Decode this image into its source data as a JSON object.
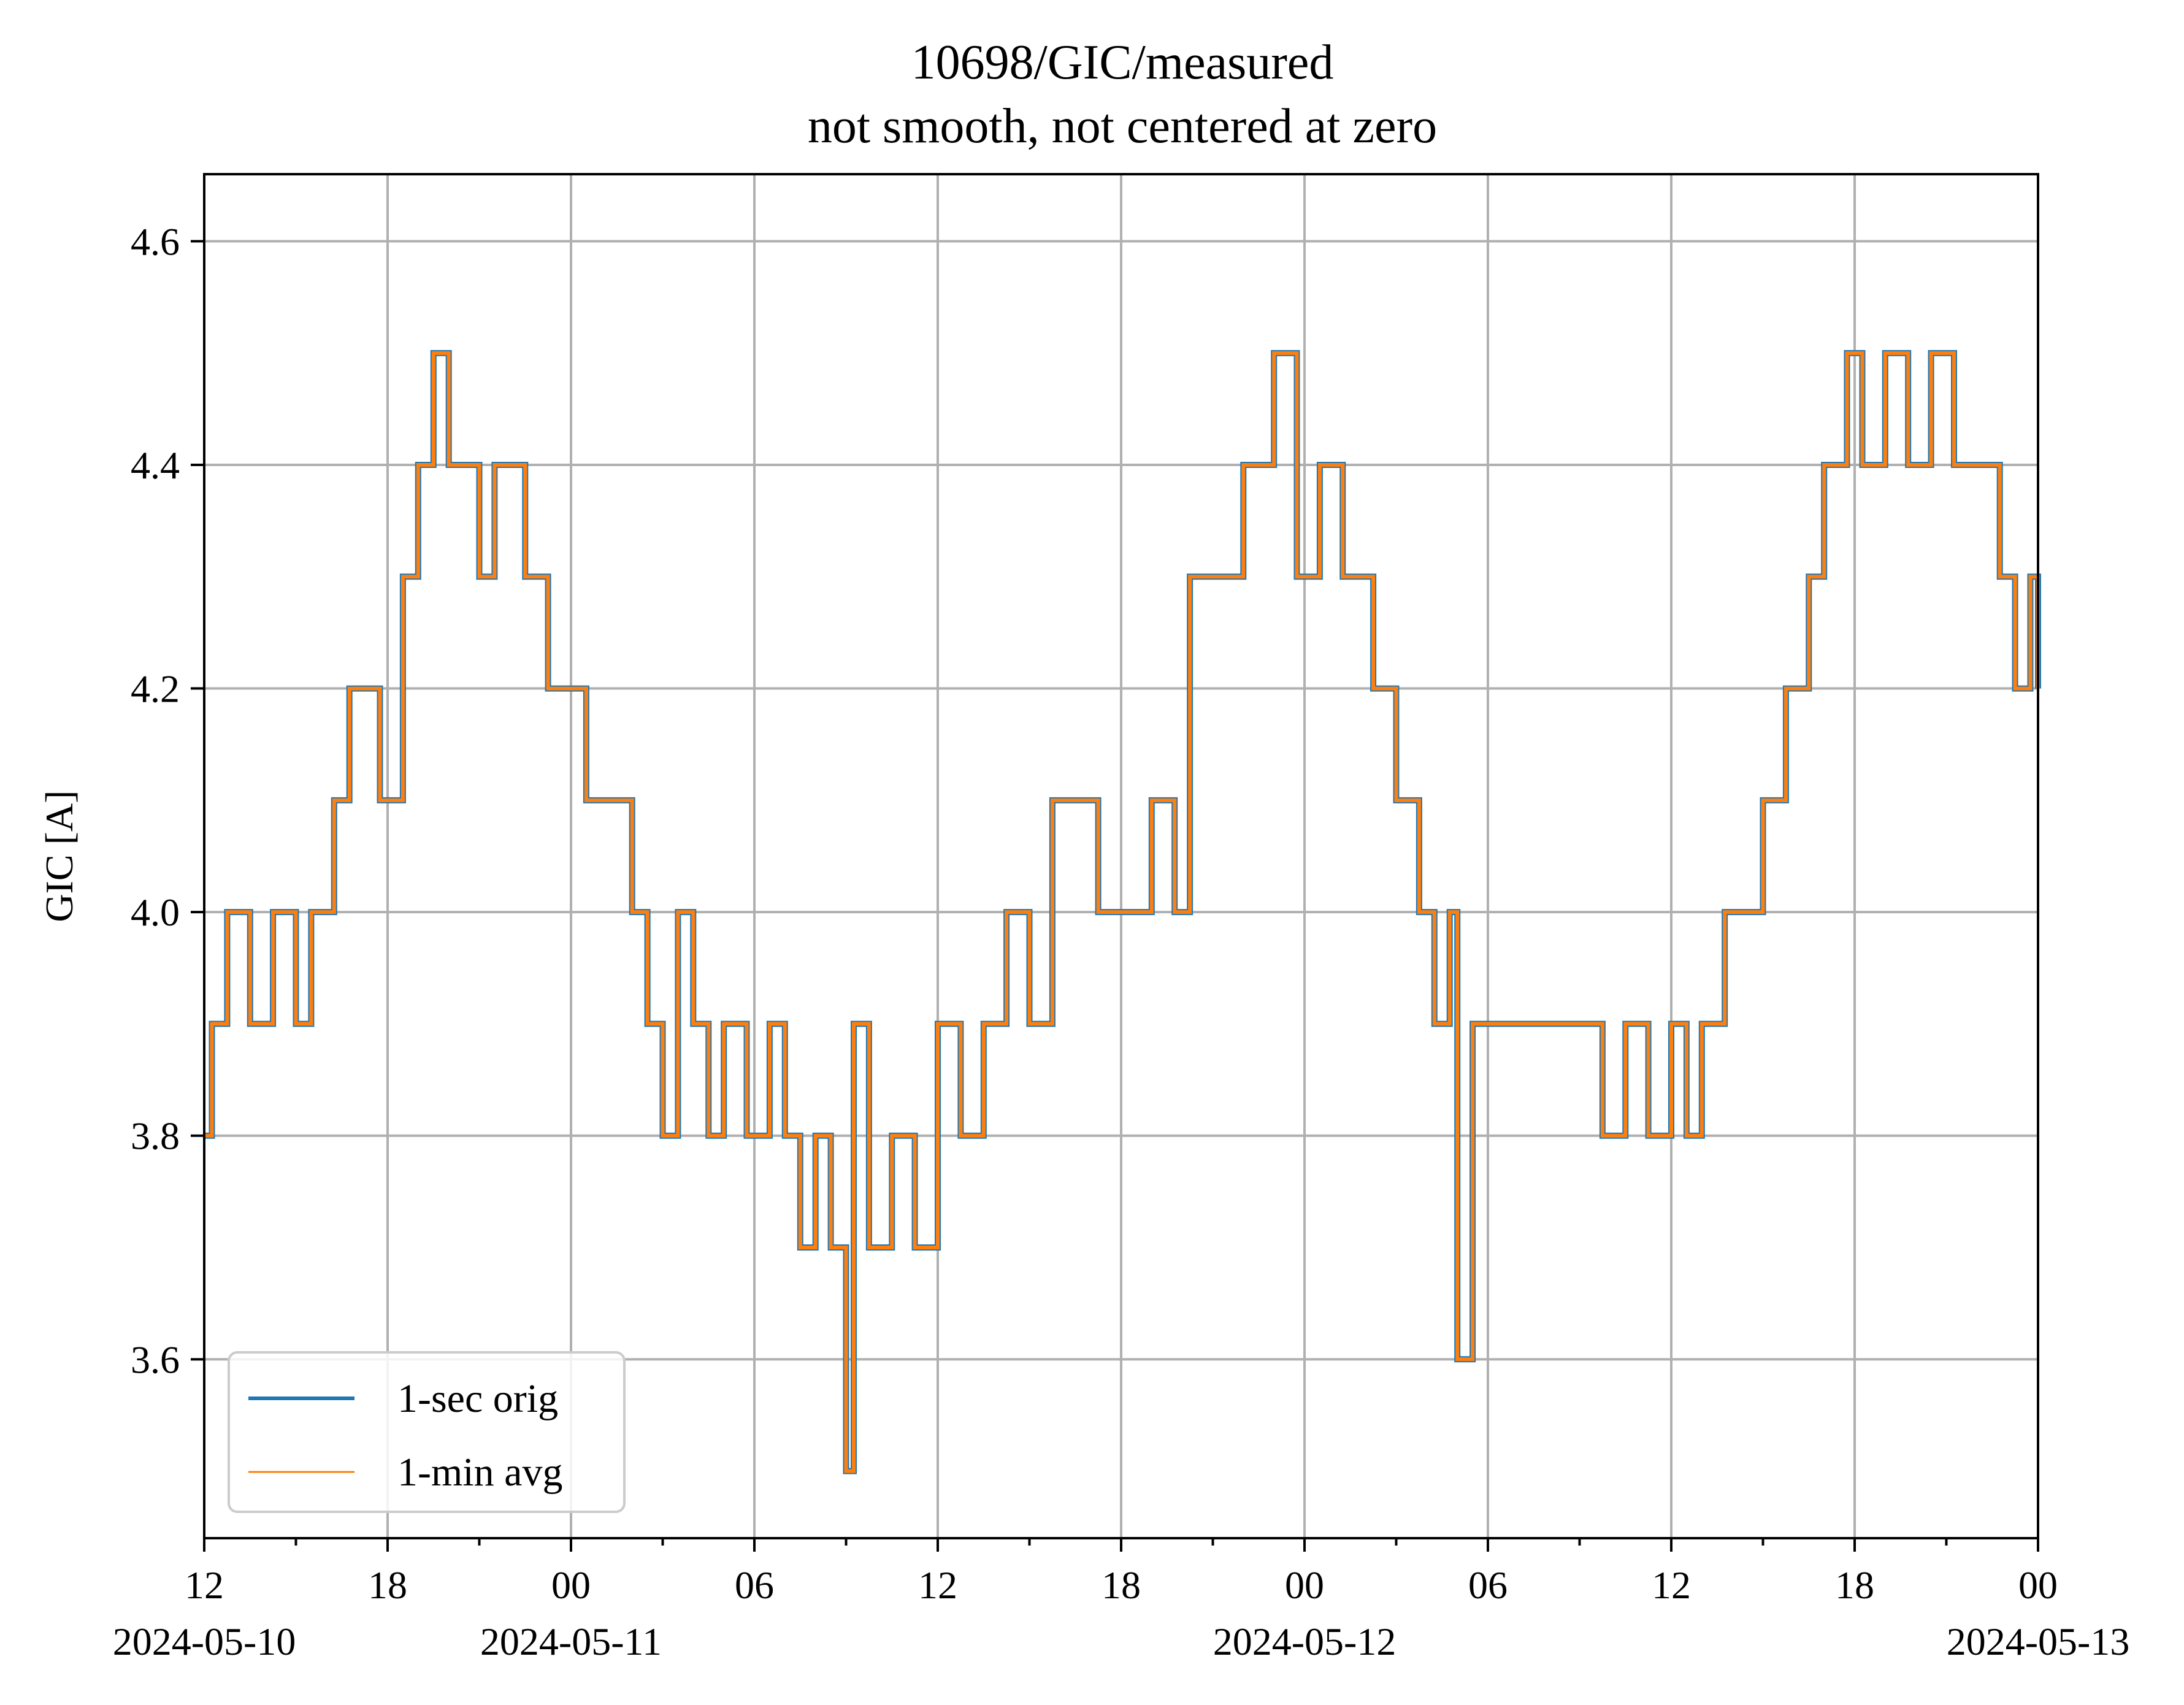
{
  "chart_data": {
    "type": "line",
    "title": "10698/GIC/measured",
    "subtitle": "not smooth, not centered at zero",
    "xlabel": "",
    "ylabel": "GIC [A]",
    "xlim": [
      "2024-05-10 12:00",
      "2024-05-13 00:00"
    ],
    "ylim": [
      3.44,
      4.66
    ],
    "grid": true,
    "legend_position": "lower-left",
    "y_ticks": [
      "3.6",
      "3.8",
      "4.0",
      "4.2",
      "4.4",
      "4.6"
    ],
    "x_ticks": [
      {
        "time": "2024-05-10 12:00",
        "label": "12",
        "date": "2024-05-10"
      },
      {
        "time": "2024-05-10 18:00",
        "label": "18",
        "date": ""
      },
      {
        "time": "2024-05-11 00:00",
        "label": "00",
        "date": "2024-05-11"
      },
      {
        "time": "2024-05-11 06:00",
        "label": "06",
        "date": ""
      },
      {
        "time": "2024-05-11 12:00",
        "label": "12",
        "date": ""
      },
      {
        "time": "2024-05-11 18:00",
        "label": "18",
        "date": ""
      },
      {
        "time": "2024-05-12 00:00",
        "label": "00",
        "date": "2024-05-12"
      },
      {
        "time": "2024-05-12 06:00",
        "label": "06",
        "date": ""
      },
      {
        "time": "2024-05-12 12:00",
        "label": "12",
        "date": ""
      },
      {
        "time": "2024-05-12 18:00",
        "label": "18",
        "date": ""
      },
      {
        "time": "2024-05-13 00:00",
        "label": "00",
        "date": "2024-05-13"
      }
    ],
    "series": [
      {
        "name": "1-sec orig",
        "color": "#1f77b4",
        "x": [
          "2024-05-10 12:00",
          "2024-05-10 12:15",
          "2024-05-10 12:45",
          "2024-05-10 13:30",
          "2024-05-10 14:15",
          "2024-05-10 15:00",
          "2024-05-10 15:30",
          "2024-05-10 16:15",
          "2024-05-10 16:45",
          "2024-05-10 17:15",
          "2024-05-10 17:45",
          "2024-05-10 18:30",
          "2024-05-10 19:00",
          "2024-05-10 19:30",
          "2024-05-10 20:00",
          "2024-05-10 21:00",
          "2024-05-10 21:30",
          "2024-05-10 22:00",
          "2024-05-10 22:30",
          "2024-05-10 23:15",
          "2024-05-10 23:45",
          "2024-05-11 00:30",
          "2024-05-11 01:15",
          "2024-05-11 02:00",
          "2024-05-11 02:30",
          "2024-05-11 03:00",
          "2024-05-11 03:30",
          "2024-05-11 04:00",
          "2024-05-11 04:30",
          "2024-05-11 05:00",
          "2024-05-11 05:45",
          "2024-05-11 06:30",
          "2024-05-11 07:00",
          "2024-05-11 07:30",
          "2024-05-11 08:00",
          "2024-05-11 08:30",
          "2024-05-11 09:00",
          "2024-05-11 09:15",
          "2024-05-11 09:45",
          "2024-05-11 10:30",
          "2024-05-11 11:15",
          "2024-05-11 12:00",
          "2024-05-11 12:45",
          "2024-05-11 13:30",
          "2024-05-11 14:15",
          "2024-05-11 15:00",
          "2024-05-11 15:45",
          "2024-05-11 16:30",
          "2024-05-11 17:15",
          "2024-05-11 18:00",
          "2024-05-11 19:00",
          "2024-05-11 19:45",
          "2024-05-11 20:15",
          "2024-05-11 21:00",
          "2024-05-11 22:00",
          "2024-05-11 23:00",
          "2024-05-11 23:45",
          "2024-05-12 00:30",
          "2024-05-12 01:15",
          "2024-05-12 02:15",
          "2024-05-12 03:00",
          "2024-05-12 03:45",
          "2024-05-12 04:15",
          "2024-05-12 04:45",
          "2024-05-12 05:00",
          "2024-05-12 05:30",
          "2024-05-12 06:00",
          "2024-05-12 07:00",
          "2024-05-12 08:00",
          "2024-05-12 09:00",
          "2024-05-12 09:45",
          "2024-05-12 10:30",
          "2024-05-12 11:15",
          "2024-05-12 12:00",
          "2024-05-12 12:30",
          "2024-05-12 13:00",
          "2024-05-12 13:45",
          "2024-05-12 14:30",
          "2024-05-12 15:00",
          "2024-05-12 15:45",
          "2024-05-12 16:30",
          "2024-05-12 17:00",
          "2024-05-12 17:45",
          "2024-05-12 18:15",
          "2024-05-12 19:00",
          "2024-05-12 19:45",
          "2024-05-12 20:30",
          "2024-05-12 21:15",
          "2024-05-12 22:00",
          "2024-05-12 22:45",
          "2024-05-12 23:15",
          "2024-05-12 23:45",
          "2024-05-13 00:00"
        ],
        "y": [
          3.8,
          3.9,
          4.0,
          3.9,
          4.0,
          3.9,
          4.0,
          4.1,
          4.2,
          4.2,
          4.1,
          4.3,
          4.4,
          4.5,
          4.4,
          4.3,
          4.4,
          4.4,
          4.3,
          4.2,
          4.2,
          4.1,
          4.1,
          4.0,
          3.9,
          3.8,
          4.0,
          3.9,
          3.8,
          3.9,
          3.8,
          3.9,
          3.8,
          3.7,
          3.8,
          3.7,
          3.5,
          3.9,
          3.7,
          3.8,
          3.7,
          3.9,
          3.8,
          3.9,
          4.0,
          3.9,
          4.1,
          4.1,
          4.0,
          4.0,
          4.1,
          4.0,
          4.3,
          4.3,
          4.4,
          4.5,
          4.3,
          4.4,
          4.3,
          4.2,
          4.1,
          4.0,
          3.9,
          4.0,
          3.6,
          3.9,
          3.9,
          3.9,
          3.9,
          3.9,
          3.8,
          3.9,
          3.8,
          3.9,
          3.8,
          3.9,
          4.0,
          4.0,
          4.1,
          4.2,
          4.3,
          4.4,
          4.5,
          4.4,
          4.5,
          4.4,
          4.5,
          4.4,
          4.4,
          4.3,
          4.2,
          4.3,
          4.2
        ]
      },
      {
        "name": "1-min avg",
        "color": "#ff7f0e",
        "x": [
          "2024-05-10 12:00",
          "2024-05-10 12:15",
          "2024-05-10 12:45",
          "2024-05-10 13:30",
          "2024-05-10 14:15",
          "2024-05-10 15:00",
          "2024-05-10 15:30",
          "2024-05-10 16:15",
          "2024-05-10 16:45",
          "2024-05-10 17:15",
          "2024-05-10 17:45",
          "2024-05-10 18:30",
          "2024-05-10 19:00",
          "2024-05-10 19:30",
          "2024-05-10 20:00",
          "2024-05-10 21:00",
          "2024-05-10 21:30",
          "2024-05-10 22:00",
          "2024-05-10 22:30",
          "2024-05-10 23:15",
          "2024-05-10 23:45",
          "2024-05-11 00:30",
          "2024-05-11 01:15",
          "2024-05-11 02:00",
          "2024-05-11 02:30",
          "2024-05-11 03:00",
          "2024-05-11 03:30",
          "2024-05-11 04:00",
          "2024-05-11 04:30",
          "2024-05-11 05:00",
          "2024-05-11 05:45",
          "2024-05-11 06:30",
          "2024-05-11 07:00",
          "2024-05-11 07:30",
          "2024-05-11 08:00",
          "2024-05-11 08:30",
          "2024-05-11 09:00",
          "2024-05-11 09:15",
          "2024-05-11 09:45",
          "2024-05-11 10:30",
          "2024-05-11 11:15",
          "2024-05-11 12:00",
          "2024-05-11 12:45",
          "2024-05-11 13:30",
          "2024-05-11 14:15",
          "2024-05-11 15:00",
          "2024-05-11 15:45",
          "2024-05-11 16:30",
          "2024-05-11 17:15",
          "2024-05-11 18:00",
          "2024-05-11 19:00",
          "2024-05-11 19:45",
          "2024-05-11 20:15",
          "2024-05-11 21:00",
          "2024-05-11 22:00",
          "2024-05-11 23:00",
          "2024-05-11 23:45",
          "2024-05-12 00:30",
          "2024-05-12 01:15",
          "2024-05-12 02:15",
          "2024-05-12 03:00",
          "2024-05-12 03:45",
          "2024-05-12 04:15",
          "2024-05-12 04:45",
          "2024-05-12 05:00",
          "2024-05-12 05:30",
          "2024-05-12 06:00",
          "2024-05-12 07:00",
          "2024-05-12 08:00",
          "2024-05-12 09:00",
          "2024-05-12 09:45",
          "2024-05-12 10:30",
          "2024-05-12 11:15",
          "2024-05-12 12:00",
          "2024-05-12 12:30",
          "2024-05-12 13:00",
          "2024-05-12 13:45",
          "2024-05-12 14:30",
          "2024-05-12 15:00",
          "2024-05-12 15:45",
          "2024-05-12 16:30",
          "2024-05-12 17:00",
          "2024-05-12 17:45",
          "2024-05-12 18:15",
          "2024-05-12 19:00",
          "2024-05-12 19:45",
          "2024-05-12 20:30",
          "2024-05-12 21:15",
          "2024-05-12 22:00",
          "2024-05-12 22:45",
          "2024-05-12 23:15",
          "2024-05-12 23:45",
          "2024-05-13 00:00"
        ],
        "y": [
          3.8,
          3.9,
          4.0,
          3.9,
          4.0,
          3.9,
          4.0,
          4.1,
          4.2,
          4.2,
          4.1,
          4.3,
          4.4,
          4.5,
          4.4,
          4.3,
          4.4,
          4.4,
          4.3,
          4.2,
          4.2,
          4.1,
          4.1,
          4.0,
          3.9,
          3.8,
          4.0,
          3.9,
          3.8,
          3.9,
          3.8,
          3.9,
          3.8,
          3.7,
          3.8,
          3.7,
          3.5,
          3.9,
          3.7,
          3.8,
          3.7,
          3.9,
          3.8,
          3.9,
          4.0,
          3.9,
          4.1,
          4.1,
          4.0,
          4.0,
          4.1,
          4.0,
          4.3,
          4.3,
          4.4,
          4.5,
          4.3,
          4.4,
          4.3,
          4.2,
          4.1,
          4.0,
          3.9,
          4.0,
          3.6,
          3.9,
          3.9,
          3.9,
          3.9,
          3.9,
          3.8,
          3.9,
          3.8,
          3.9,
          3.8,
          3.9,
          4.0,
          4.0,
          4.1,
          4.2,
          4.3,
          4.4,
          4.5,
          4.4,
          4.5,
          4.4,
          4.5,
          4.4,
          4.4,
          4.3,
          4.2,
          4.3,
          4.2
        ]
      }
    ]
  }
}
